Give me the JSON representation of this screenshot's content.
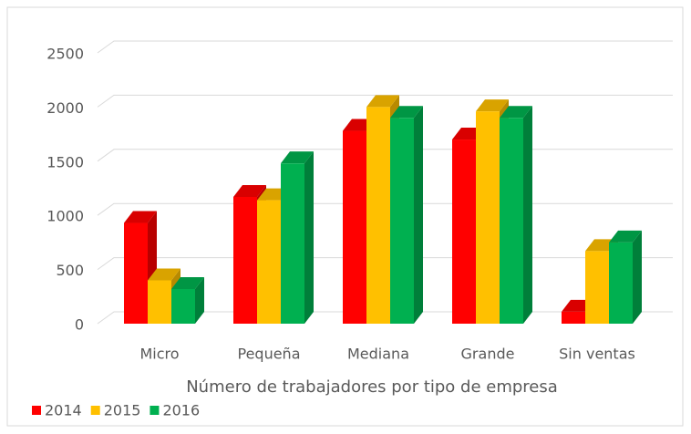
{
  "chart_data": {
    "type": "bar3d",
    "x_label": "Número de trabajadores por tipo de empresa",
    "categories": [
      "Micro",
      "Pequeña",
      "Mediana",
      "Grande",
      "Sin ventas"
    ],
    "series": [
      {
        "name": "2014",
        "color": "#ff0000",
        "values": [
          930,
          1170,
          1780,
          1700,
          110
        ]
      },
      {
        "name": "2015",
        "color": "#ffc000",
        "values": [
          400,
          1140,
          2000,
          1960,
          670
        ]
      },
      {
        "name": "2016",
        "color": "#00b050",
        "values": [
          320,
          1480,
          1900,
          1900,
          750
        ]
      }
    ],
    "ylim": [
      0,
      2500
    ],
    "yticks": [
      0,
      500,
      1000,
      1500,
      2000,
      2500
    ],
    "grid": true,
    "legend": "bottom-left"
  }
}
